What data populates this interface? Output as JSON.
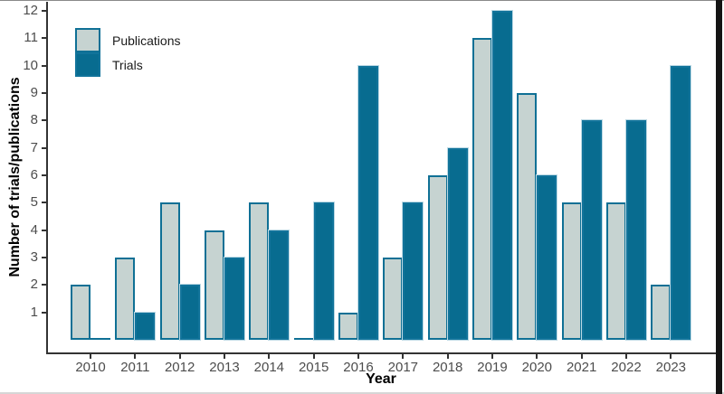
{
  "chart_data": {
    "type": "bar",
    "title": "",
    "xlabel": "Year",
    "ylabel": "Number of trials/publications",
    "categories": [
      "2010",
      "2011",
      "2012",
      "2013",
      "2014",
      "2015",
      "2016",
      "2017",
      "2018",
      "2019",
      "2020",
      "2021",
      "2022",
      "2023"
    ],
    "series": [
      {
        "name": "Publications",
        "color": "#c6d3d1",
        "values": [
          2,
          3,
          5,
          4,
          5,
          0,
          1,
          3,
          6,
          11,
          9,
          5,
          5,
          2
        ]
      },
      {
        "name": "Trials",
        "color": "#086c90",
        "values": [
          0,
          1,
          2,
          3,
          4,
          5,
          10,
          5,
          7,
          12,
          6,
          8,
          8,
          10
        ]
      }
    ],
    "ylim": [
      0,
      12
    ],
    "yticks": [
      1,
      2,
      3,
      4,
      5,
      6,
      7,
      8,
      9,
      10,
      11,
      12
    ],
    "grid": "off",
    "legend_position": "top-left-inside"
  },
  "colors": {
    "publications_fill": "#c6d3d1",
    "trials_fill": "#086c90",
    "bar_stroke": "#0f7095",
    "axis": "#333333",
    "tick_label": "#4d4d4d",
    "title_text": "#000000",
    "legend_text": "#1a1a1a",
    "window_border": "#141414"
  }
}
